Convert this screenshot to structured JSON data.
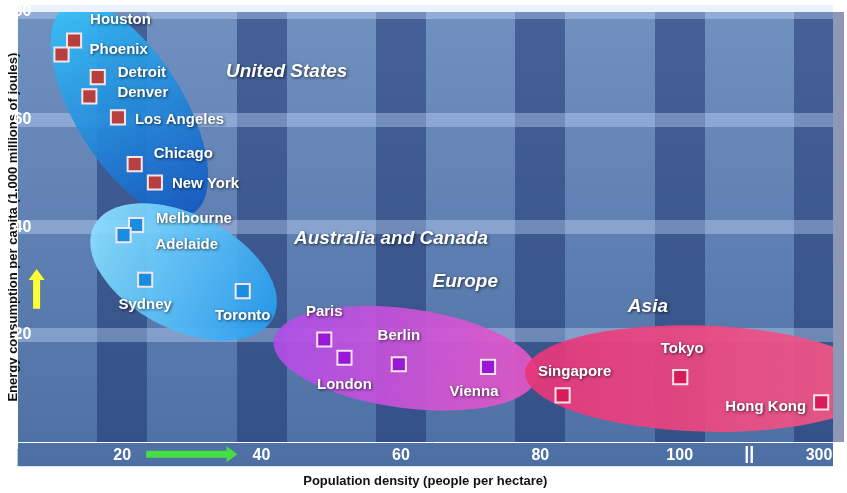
{
  "chart_data": {
    "type": "scatter",
    "x_label": "Population density (people per hectare)",
    "y_label": "Energy consumption per capita (1,000 millions of joules)",
    "xlim": [
      5,
      320
    ],
    "xticks": [
      20,
      40,
      60,
      80,
      100,
      300
    ],
    "x_break": {
      "label": "||",
      "after": 100
    },
    "ylim": [
      0,
      80
    ],
    "yticks": [
      20,
      40,
      60,
      80
    ],
    "grid": true,
    "series": [
      {
        "name": "United States",
        "color": "#b5403f",
        "marker": "square",
        "labels": [
          "Houston",
          "Phoenix",
          "Detroit",
          "Denver",
          "Los Angeles",
          "Chicago",
          "New York"
        ],
        "x": [
          13.1,
          11.3,
          16.5,
          15.3,
          19.4,
          21.8,
          24.7
        ],
        "y": [
          74.7,
          72.1,
          67.9,
          64.3,
          60.4,
          51.7,
          48.3
        ]
      },
      {
        "name": "Australia and Canada",
        "color": "#1b8de0",
        "marker": "square",
        "labels": [
          "Melbourne",
          "Adelaide",
          "Sydney",
          "Toronto"
        ],
        "x": [
          22.0,
          20.2,
          23.3,
          37.3
        ],
        "y": [
          40.4,
          38.5,
          30.2,
          28.1
        ]
      },
      {
        "name": "Europe",
        "color": "#9b17d6",
        "marker": "square",
        "labels": [
          "Paris",
          "London",
          "Berlin",
          "Vienna"
        ],
        "x": [
          49.0,
          51.9,
          59.7,
          72.5
        ],
        "y": [
          19.1,
          15.7,
          14.5,
          14.0
        ]
      },
      {
        "name": "Asia",
        "color": "#d81b5a",
        "marker": "square",
        "labels": [
          "Singapore",
          "Tokyo",
          "Hong Kong"
        ],
        "x": [
          83.2,
          100.8,
          303
        ],
        "y": [
          8.7,
          12.1,
          7.4
        ]
      }
    ]
  }
}
